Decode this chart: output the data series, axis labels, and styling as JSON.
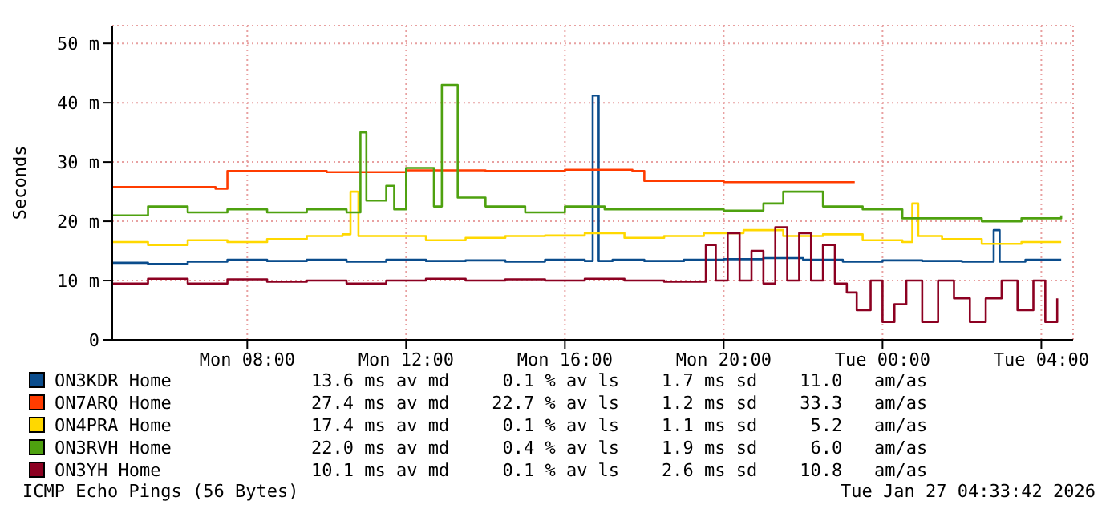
{
  "chart_data": {
    "type": "step",
    "ylabel": "Seconds",
    "xlim": [
      "2026-01-26T04:36",
      "2026-01-27T04:48"
    ],
    "xticks": [
      {
        "value": "2026-01-26T08:00",
        "label": "Mon 08:00"
      },
      {
        "value": "2026-01-26T12:00",
        "label": "Mon 12:00"
      },
      {
        "value": "2026-01-26T16:00",
        "label": "Mon 16:00"
      },
      {
        "value": "2026-01-26T20:00",
        "label": "Mon 20:00"
      },
      {
        "value": "2026-01-27T00:00",
        "label": "Tue 00:00"
      },
      {
        "value": "2026-01-27T04:00",
        "label": "Tue 04:00"
      }
    ],
    "ylim": [
      0,
      53
    ],
    "yticks": [
      {
        "value": 0,
        "label": "0"
      },
      {
        "value": 10,
        "label": "10 m"
      },
      {
        "value": 20,
        "label": "20 m"
      },
      {
        "value": 30,
        "label": "30 m"
      },
      {
        "value": 40,
        "label": "40 m"
      },
      {
        "value": 50,
        "label": "50 m"
      }
    ],
    "grid": true,
    "legend": "bottom",
    "marker": "none",
    "line_style": "solid",
    "series": [
      {
        "name": "ON3KDR Home",
        "color": "#0a4c8c",
        "x": [
          "2026-01-26T04:36",
          "2026-01-26T05:30",
          "2026-01-26T06:30",
          "2026-01-26T07:30",
          "2026-01-26T08:30",
          "2026-01-26T09:30",
          "2026-01-26T10:30",
          "2026-01-26T11:30",
          "2026-01-26T12:30",
          "2026-01-26T13:30",
          "2026-01-26T14:30",
          "2026-01-26T15:30",
          "2026-01-26T16:30",
          "2026-01-26T16:42",
          "2026-01-26T16:51",
          "2026-01-26T17:12",
          "2026-01-26T18:00",
          "2026-01-26T19:00",
          "2026-01-26T20:00",
          "2026-01-26T21:00",
          "2026-01-26T22:00",
          "2026-01-26T23:00",
          "2026-01-27T00:00",
          "2026-01-27T01:00",
          "2026-01-27T02:00",
          "2026-01-27T02:48",
          "2026-01-27T02:57",
          "2026-01-27T03:36",
          "2026-01-27T04:30"
        ],
        "values": [
          13,
          12.8,
          13.2,
          13.5,
          13.3,
          13.5,
          13.2,
          13.5,
          13.3,
          13.4,
          13.2,
          13.5,
          13.3,
          41.2,
          13.3,
          13.5,
          13.3,
          13.5,
          13.6,
          13.8,
          13.5,
          13.2,
          13.4,
          13.3,
          13.2,
          18.5,
          13.2,
          13.5,
          13.5
        ]
      },
      {
        "name": "ON7ARQ Home",
        "color": "#ff3c00",
        "x": [
          "2026-01-26T04:36",
          "2026-01-26T06:00",
          "2026-01-26T07:12",
          "2026-01-26T07:30",
          "2026-01-26T08:30",
          "2026-01-26T10:00",
          "2026-01-26T12:00",
          "2026-01-26T14:00",
          "2026-01-26T16:00",
          "2026-01-26T17:42",
          "2026-01-26T18:00",
          "2026-01-26T20:00",
          "2026-01-26T22:00",
          "2026-01-26T23:18"
        ],
        "values": [
          25.8,
          25.8,
          25.5,
          28.5,
          28.5,
          28.3,
          28.6,
          28.5,
          28.7,
          28.5,
          26.8,
          26.6,
          26.6,
          26.6
        ]
      },
      {
        "name": "ON4PRA Home",
        "color": "#ffd800",
        "x": [
          "2026-01-26T04:36",
          "2026-01-26T05:30",
          "2026-01-26T06:30",
          "2026-01-26T07:30",
          "2026-01-26T08:30",
          "2026-01-26T09:30",
          "2026-01-26T10:24",
          "2026-01-26T10:36",
          "2026-01-26T10:48",
          "2026-01-26T11:30",
          "2026-01-26T12:30",
          "2026-01-26T13:30",
          "2026-01-26T14:30",
          "2026-01-26T15:30",
          "2026-01-26T16:30",
          "2026-01-26T17:30",
          "2026-01-26T18:30",
          "2026-01-26T19:30",
          "2026-01-26T20:30",
          "2026-01-26T21:30",
          "2026-01-26T22:30",
          "2026-01-26T23:30",
          "2026-01-27T00:30",
          "2026-01-27T00:45",
          "2026-01-27T00:54",
          "2026-01-27T01:30",
          "2026-01-27T02:30",
          "2026-01-27T03:30",
          "2026-01-27T04:30"
        ],
        "values": [
          16.5,
          16,
          16.8,
          16.5,
          17,
          17.5,
          17.8,
          25,
          17.5,
          17.5,
          16.8,
          17.2,
          17.5,
          17.6,
          18,
          17.2,
          17.5,
          18,
          18.5,
          17.5,
          17.8,
          16.8,
          16.5,
          23,
          17.5,
          17,
          16.2,
          16.5,
          16.5
        ]
      },
      {
        "name": "ON3RVH Home",
        "color": "#4ea10f",
        "x": [
          "2026-01-26T04:36",
          "2026-01-26T05:30",
          "2026-01-26T06:30",
          "2026-01-26T07:30",
          "2026-01-26T08:30",
          "2026-01-26T09:30",
          "2026-01-26T10:30",
          "2026-01-26T10:51",
          "2026-01-26T11:00",
          "2026-01-26T11:30",
          "2026-01-26T11:42",
          "2026-01-26T12:00",
          "2026-01-26T12:42",
          "2026-01-26T12:54",
          "2026-01-26T13:18",
          "2026-01-26T14:00",
          "2026-01-26T15:00",
          "2026-01-26T16:00",
          "2026-01-26T17:00",
          "2026-01-26T18:00",
          "2026-01-26T19:00",
          "2026-01-26T20:00",
          "2026-01-26T21:00",
          "2026-01-26T21:30",
          "2026-01-26T22:30",
          "2026-01-26T23:30",
          "2026-01-27T00:30",
          "2026-01-27T01:30",
          "2026-01-27T02:30",
          "2026-01-27T03:30",
          "2026-01-27T04:30"
        ],
        "values": [
          21,
          22.5,
          21.5,
          22,
          21.5,
          22,
          21.5,
          35,
          23.5,
          26,
          22,
          29,
          22.5,
          43,
          24,
          22.5,
          21.5,
          22.5,
          22,
          22,
          22,
          21.8,
          23,
          25,
          22.5,
          22,
          20.5,
          20.5,
          20,
          20.5,
          21
        ]
      },
      {
        "name": "ON3YH Home",
        "color": "#8c0021",
        "x": [
          "2026-01-26T04:36",
          "2026-01-26T05:30",
          "2026-01-26T06:30",
          "2026-01-26T07:30",
          "2026-01-26T08:30",
          "2026-01-26T09:30",
          "2026-01-26T10:30",
          "2026-01-26T11:30",
          "2026-01-26T12:30",
          "2026-01-26T13:30",
          "2026-01-26T14:30",
          "2026-01-26T15:30",
          "2026-01-26T16:30",
          "2026-01-26T17:30",
          "2026-01-26T18:30",
          "2026-01-26T19:33",
          "2026-01-26T19:48",
          "2026-01-26T20:06",
          "2026-01-26T20:24",
          "2026-01-26T20:42",
          "2026-01-26T21:00",
          "2026-01-26T21:18",
          "2026-01-26T21:36",
          "2026-01-26T21:54",
          "2026-01-26T22:12",
          "2026-01-26T22:30",
          "2026-01-26T22:48",
          "2026-01-26T23:06",
          "2026-01-26T23:21",
          "2026-01-26T23:42",
          "2026-01-27T00:00",
          "2026-01-27T00:18",
          "2026-01-27T00:36",
          "2026-01-27T01:00",
          "2026-01-27T01:24",
          "2026-01-27T01:48",
          "2026-01-27T02:12",
          "2026-01-27T02:36",
          "2026-01-27T03:00",
          "2026-01-27T03:24",
          "2026-01-27T03:48",
          "2026-01-27T04:06",
          "2026-01-27T04:24"
        ],
        "values": [
          9.5,
          10.3,
          9.5,
          10.2,
          9.8,
          10,
          9.5,
          10,
          10.3,
          10,
          10.2,
          10,
          10.3,
          10,
          9.8,
          16,
          10,
          18,
          10,
          15,
          9.5,
          19,
          10,
          18,
          10,
          16,
          9.5,
          8,
          5,
          10,
          3,
          6,
          10,
          3,
          10,
          7,
          3,
          7,
          10,
          5,
          10,
          3,
          7
        ]
      }
    ],
    "annotations": [
      "13.6 ms av md     0.1 % av ls    1.7 ms sd    11.0   am/as",
      "27.4 ms av md    22.7 % av ls    1.2 ms sd    33.3   am/as",
      "17.4 ms av md     0.1 % av ls    1.1 ms sd     5.2   am/as",
      "22.0 ms av md     0.4 % av ls    1.9 ms sd     6.0   am/as",
      "10.1 ms av md     0.1 % av ls    2.6 ms sd    10.8   am/as",
      "ICMP Echo Pings (56 Bytes)",
      "Tue Jan 27 04:33:42 2026"
    ]
  }
}
